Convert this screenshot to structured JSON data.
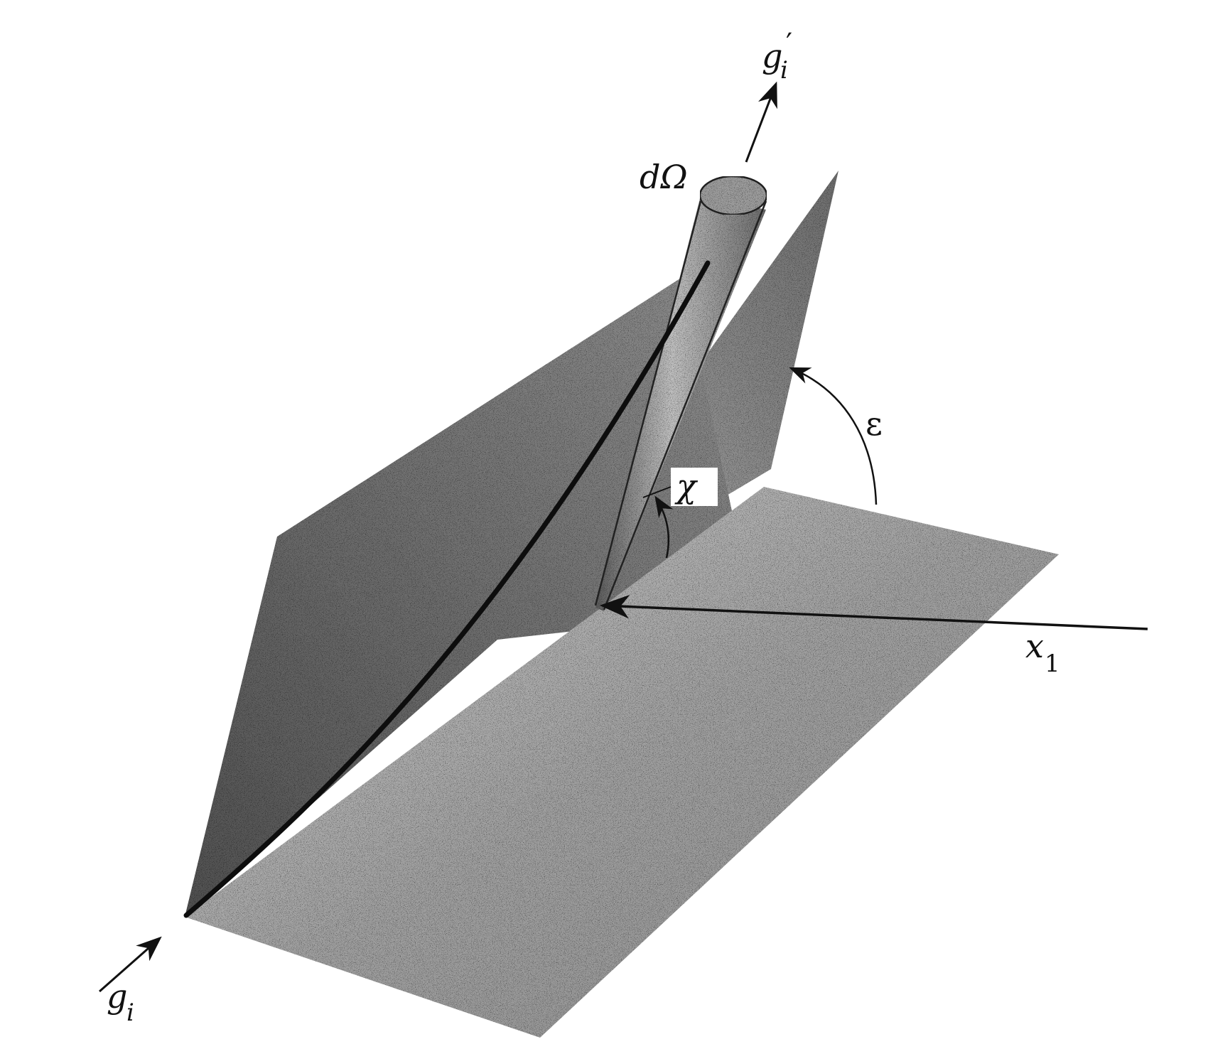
{
  "diagram": {
    "labels": {
      "incoming_base": "g",
      "incoming_sub": "i",
      "outgoing_base": "g",
      "outgoing_sub": "i",
      "outgoing_prime": "′",
      "solid_angle": "dΩ",
      "chi": "χ",
      "epsilon": "ε",
      "axis_base": "x",
      "axis_sub": "1"
    },
    "colors": {
      "ink": "#111111",
      "left_plane": "#6a6a6a",
      "back_plane": "#7c7c7c",
      "floor_plane": "#a8a8a8",
      "cylinder": "#8a8a8a",
      "paper": "#ffffff"
    }
  }
}
